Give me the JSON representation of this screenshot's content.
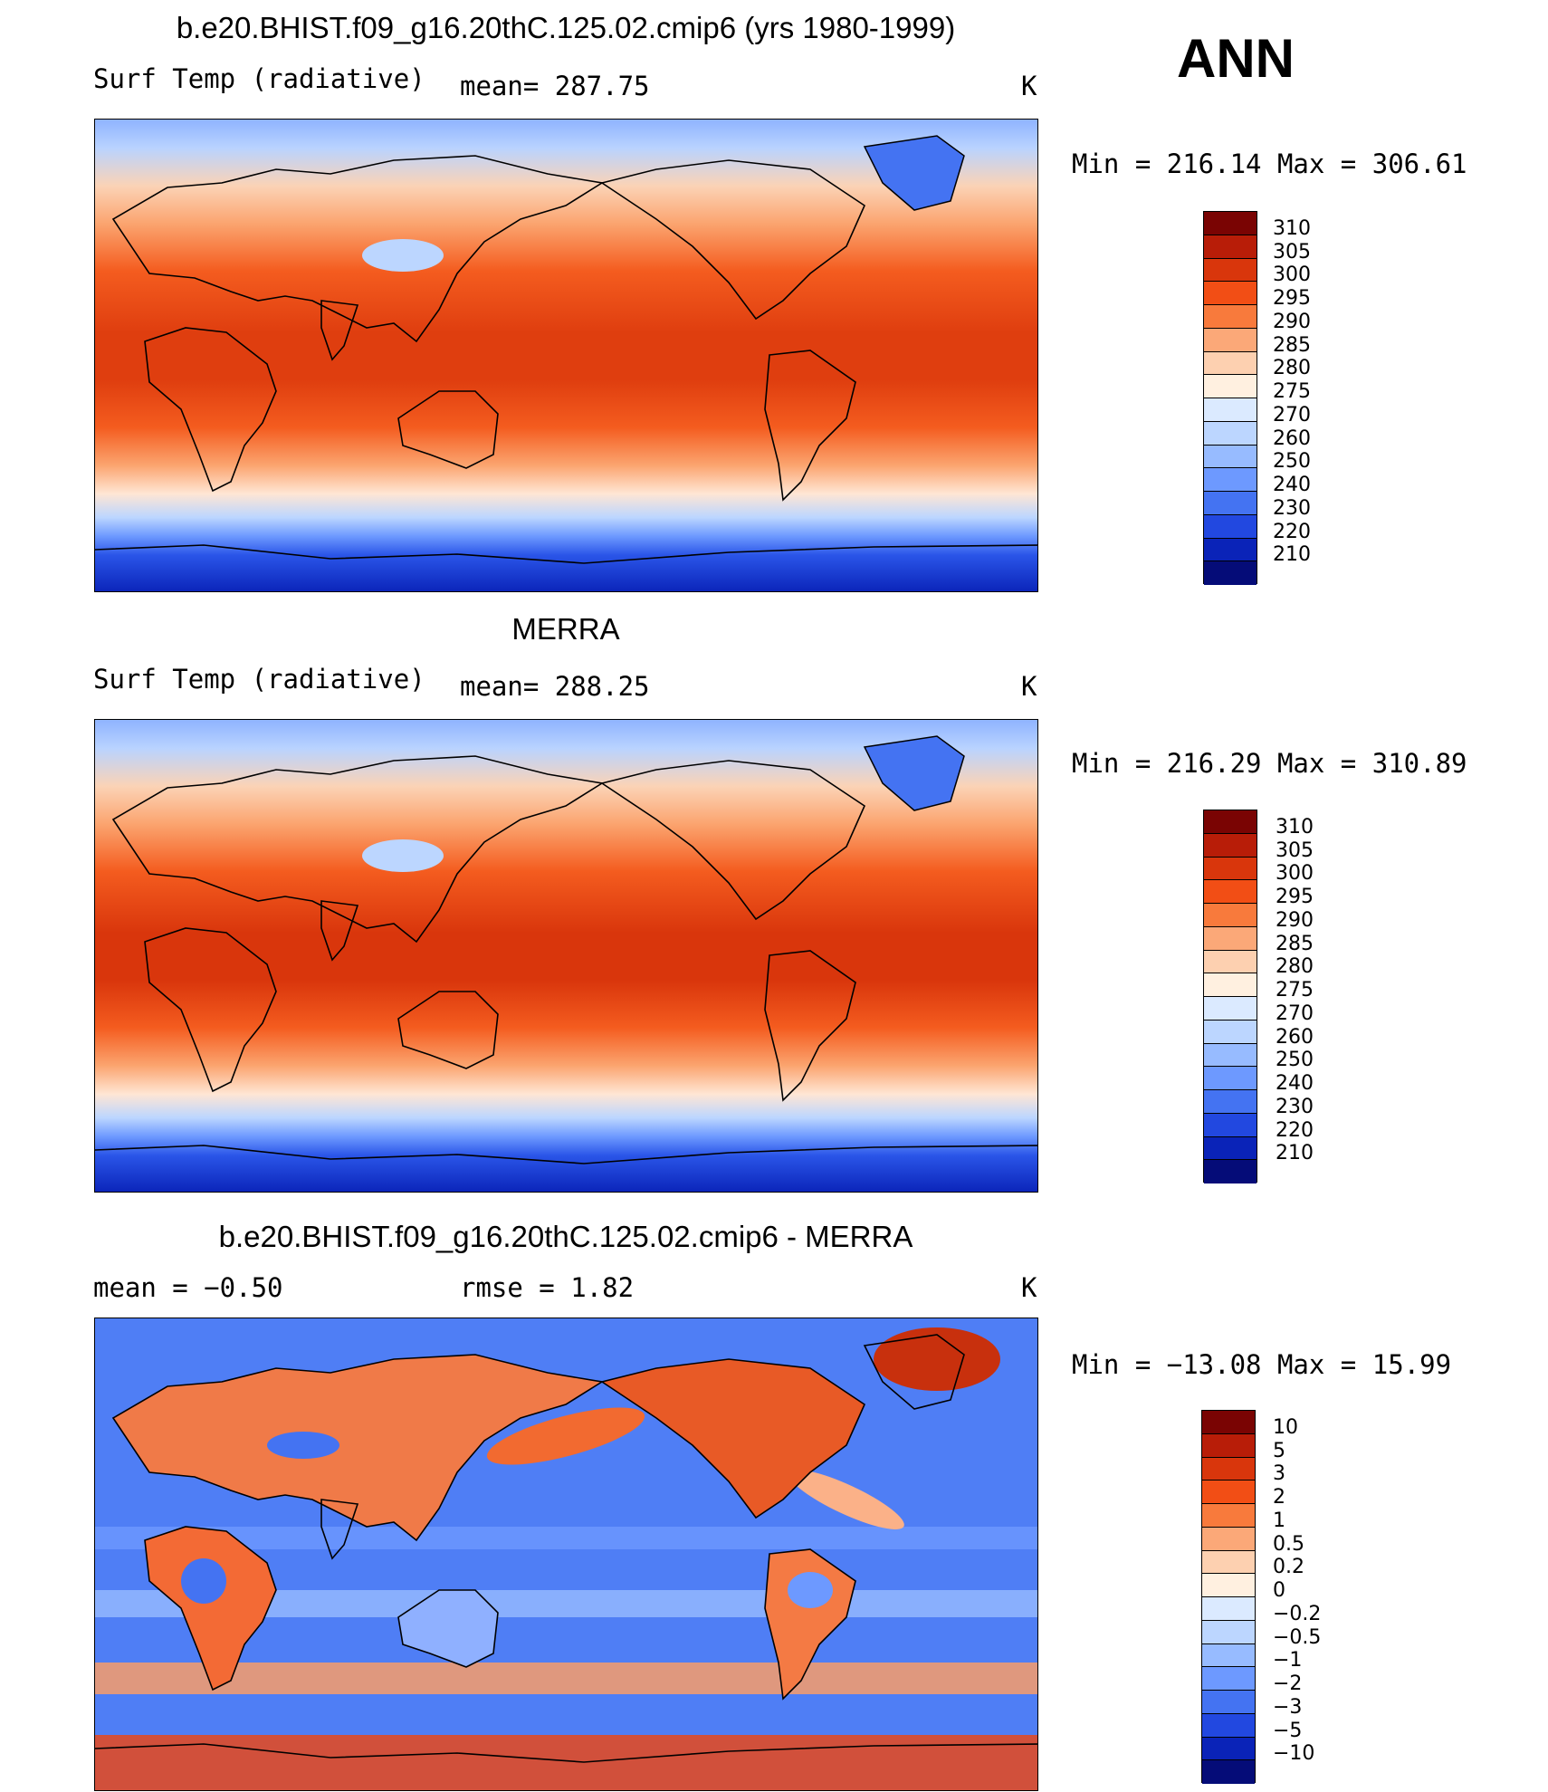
{
  "season": "ANN",
  "panels": [
    {
      "title": "b.e20.BHIST.f09_g16.20thC.125.02.cmip6 (yrs 1980-1999)",
      "left_label": "Surf Temp (radiative)",
      "center_label": "mean= 287.75",
      "units": "K",
      "minmax": "Min = 216.14 Max = 306.61",
      "colorbar": {
        "labels": [
          "310",
          "305",
          "300",
          "295",
          "290",
          "285",
          "280",
          "275",
          "270",
          "260",
          "250",
          "240",
          "230",
          "220",
          "210"
        ],
        "colors": [
          "#7a0403",
          "#b81d08",
          "#d9360c",
          "#f24e15",
          "#f87a3c",
          "#fba878",
          "#fdd0b0",
          "#fff0e0",
          "#dbeaff",
          "#bcd6ff",
          "#97bbff",
          "#6d99ff",
          "#4473f2",
          "#2248e0",
          "#0a23b8",
          "#050c78"
        ]
      }
    },
    {
      "title": "MERRA",
      "left_label": "Surf Temp (radiative)",
      "center_label": "mean= 288.25",
      "units": "K",
      "minmax": "Min = 216.29 Max = 310.89",
      "colorbar": {
        "labels": [
          "310",
          "305",
          "300",
          "295",
          "290",
          "285",
          "280",
          "275",
          "270",
          "260",
          "250",
          "240",
          "230",
          "220",
          "210"
        ],
        "colors": [
          "#7a0403",
          "#b81d08",
          "#d9360c",
          "#f24e15",
          "#f87a3c",
          "#fba878",
          "#fdd0b0",
          "#fff0e0",
          "#dbeaff",
          "#bcd6ff",
          "#97bbff",
          "#6d99ff",
          "#4473f2",
          "#2248e0",
          "#0a23b8",
          "#050c78"
        ]
      }
    },
    {
      "title": "b.e20.BHIST.f09_g16.20thC.125.02.cmip6 - MERRA",
      "left_label": "mean =  −0.50",
      "center_label": "rmse =    1.82",
      "units": "K",
      "minmax": "Min = −13.08 Max =   15.99",
      "colorbar": {
        "labels": [
          "10",
          "5",
          "3",
          "2",
          "1",
          "0.5",
          "0.2",
          "0",
          "−0.2",
          "−0.5",
          "−1",
          "−2",
          "−3",
          "−5",
          "−10"
        ],
        "colors": [
          "#7a0403",
          "#b81d08",
          "#d9360c",
          "#f24e15",
          "#f87a3c",
          "#fba878",
          "#fdd0b0",
          "#fff0e0",
          "#dbeaff",
          "#bcd6ff",
          "#97bbff",
          "#6d99ff",
          "#4473f2",
          "#2248e0",
          "#0a23b8",
          "#050c78"
        ]
      }
    }
  ],
  "chart_data": [
    {
      "type": "heatmap",
      "title": "b.e20.BHIST.f09_g16.20thC.125.02.cmip6 (yrs 1980-1999)",
      "variable": "Surf Temp (radiative)",
      "units": "K",
      "mean": 287.75,
      "min": 216.14,
      "max": 306.61,
      "levels": [
        210,
        220,
        230,
        240,
        250,
        260,
        270,
        275,
        280,
        285,
        290,
        295,
        300,
        305,
        310
      ]
    },
    {
      "type": "heatmap",
      "title": "MERRA",
      "variable": "Surf Temp (radiative)",
      "units": "K",
      "mean": 288.25,
      "min": 216.29,
      "max": 310.89,
      "levels": [
        210,
        220,
        230,
        240,
        250,
        260,
        270,
        275,
        280,
        285,
        290,
        295,
        300,
        305,
        310
      ]
    },
    {
      "type": "heatmap",
      "title": "b.e20.BHIST.f09_g16.20thC.125.02.cmip6 - MERRA",
      "units": "K",
      "mean": -0.5,
      "rmse": 1.82,
      "min": -13.08,
      "max": 15.99,
      "levels": [
        -10,
        -5,
        -3,
        -2,
        -1,
        -0.5,
        -0.2,
        0,
        0.2,
        0.5,
        1,
        2,
        3,
        5,
        10
      ]
    }
  ]
}
